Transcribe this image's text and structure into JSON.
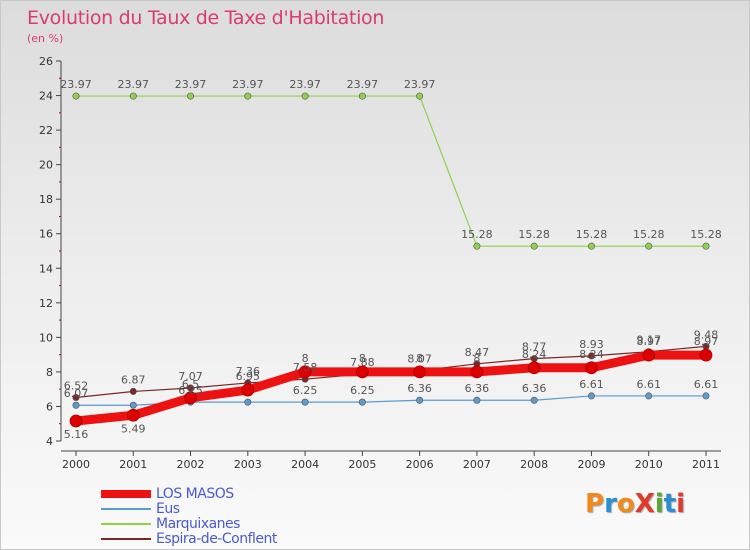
{
  "title": "Evolution du Taux de Taxe d'Habitation",
  "unit_label": "(en %)",
  "logo": {
    "text": "ProXiti",
    "colors": [
      "#f08a1d",
      "#2a8fd1",
      "#f08a1d",
      "#e23a2a",
      "#5aa832",
      "#2a8fd1",
      "#e23a2a"
    ]
  },
  "chart_data": {
    "type": "line",
    "categories": [
      "2000",
      "2001",
      "2002",
      "2003",
      "2004",
      "2005",
      "2006",
      "2007",
      "2008",
      "2009",
      "2010",
      "2011"
    ],
    "ylim": [
      4,
      26
    ],
    "yticks": [
      "4",
      "6",
      "8",
      "10",
      "12",
      "14",
      "16",
      "18",
      "20",
      "22",
      "24",
      "26"
    ],
    "grid": false,
    "legend_position": "bottom-left",
    "series": [
      {
        "name": "Marquixanes",
        "color": "#8ed24a",
        "values": [
          23.97,
          23.97,
          23.97,
          23.97,
          23.97,
          23.97,
          23.97,
          15.28,
          15.28,
          15.28,
          15.28,
          15.28
        ],
        "labels": [
          "23.97",
          "23.97",
          "23.97",
          "23.97",
          "23.97",
          "23.97",
          "23.97",
          "15.28",
          "15.28",
          "15.28",
          "15.28",
          "15.28"
        ]
      },
      {
        "name": "Eus",
        "color": "#5a9bd0",
        "values": [
          6.07,
          6.07,
          6.25,
          6.25,
          6.25,
          6.25,
          6.36,
          6.36,
          6.36,
          6.61,
          6.61,
          6.61
        ],
        "labels": [
          "6.07",
          "",
          "6.25",
          "",
          "6.25",
          "6.25",
          "6.36",
          "6.36",
          "6.36",
          "6.61",
          "6.61",
          "6.61"
        ]
      },
      {
        "name": "Espira-de-Conflent",
        "color": "#7a2828",
        "values": [
          6.52,
          6.87,
          7.07,
          7.36,
          7.58,
          7.88,
          8.07,
          8.47,
          8.77,
          8.93,
          9.17,
          9.48
        ],
        "labels": [
          "6.52",
          "6.87",
          "7.07",
          "7.36",
          "7.58",
          "7.88",
          "8.07",
          "8.47",
          "8.77",
          "8.93",
          "9.17",
          "9.48"
        ]
      },
      {
        "name": "LOS MASOS",
        "color": "#ee1111",
        "values": [
          5.16,
          5.49,
          6.5,
          6.95,
          8,
          8,
          8,
          8,
          8.24,
          8.24,
          8.97,
          8.97
        ],
        "labels": [
          "5.16",
          "5.49",
          "6.5",
          "6.95",
          "8",
          "8",
          "8",
          "8",
          "8.24",
          "8.24",
          "8.97",
          "8.97"
        ]
      }
    ]
  },
  "legend": [
    {
      "label": "LOS MASOS",
      "color": "#ee1111",
      "thick": true
    },
    {
      "label": "Eus",
      "color": "#5a9bd0",
      "thick": false
    },
    {
      "label": "Marquixanes",
      "color": "#8ed24a",
      "thick": false
    },
    {
      "label": "Espira-de-Conflent",
      "color": "#7a2828",
      "thick": false
    }
  ]
}
